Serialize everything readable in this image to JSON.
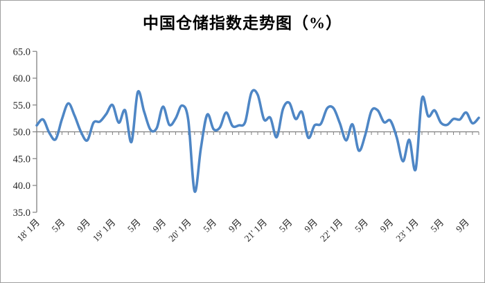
{
  "chart_data": {
    "type": "line",
    "title": "中国仓储指数走势图（%）",
    "ylabel": "",
    "xlabel": "",
    "ylim": [
      35,
      65
    ],
    "x_axis_cross_value": 50,
    "grid": false,
    "legend": false,
    "line_color": "#4e86c5",
    "axis_color": "#808080",
    "text_color": "#262626",
    "y_tick_values": [
      65,
      60,
      55,
      50,
      45,
      40,
      35
    ],
    "y_tick_labels": [
      "65.0",
      "60.0",
      "55.0",
      "50.0",
      "45.0",
      "40.0",
      "35.0"
    ],
    "x_tick_month_interval": 4,
    "x_tick_labels": [
      "18' 1月",
      "5月",
      "9月",
      "19' 1月",
      "5月",
      "9月",
      "20' 1月",
      "5月",
      "9月",
      "21' 1月",
      "5月",
      "9月",
      "22' 1月",
      "5月",
      "9月",
      "23' 1月",
      "5月",
      "9月"
    ],
    "months": [
      "2018-01",
      "2018-02",
      "2018-03",
      "2018-04",
      "2018-05",
      "2018-06",
      "2018-07",
      "2018-08",
      "2018-09",
      "2018-10",
      "2018-11",
      "2018-12",
      "2019-01",
      "2019-02",
      "2019-03",
      "2019-04",
      "2019-05",
      "2019-06",
      "2019-07",
      "2019-08",
      "2019-09",
      "2019-10",
      "2019-11",
      "2019-12",
      "2020-01",
      "2020-02",
      "2020-03",
      "2020-04",
      "2020-05",
      "2020-06",
      "2020-07",
      "2020-08",
      "2020-09",
      "2020-10",
      "2020-11",
      "2020-12",
      "2021-01",
      "2021-02",
      "2021-03",
      "2021-04",
      "2021-05",
      "2021-06",
      "2021-07",
      "2021-08",
      "2021-09",
      "2021-10",
      "2021-11",
      "2021-12",
      "2022-01",
      "2022-02",
      "2022-03",
      "2022-04",
      "2022-05",
      "2022-06",
      "2022-07",
      "2022-08",
      "2022-09",
      "2022-10",
      "2022-11",
      "2022-12",
      "2023-01",
      "2023-02",
      "2023-03",
      "2023-04",
      "2023-05",
      "2023-06",
      "2023-07",
      "2023-08",
      "2023-09",
      "2023-10",
      "2023-11"
    ],
    "values": [
      51.2,
      52.3,
      49.8,
      48.6,
      52.4,
      55.3,
      53.0,
      50.0,
      48.4,
      51.7,
      51.9,
      53.3,
      55.0,
      51.7,
      54.0,
      48.1,
      57.4,
      53.8,
      50.4,
      50.7,
      54.7,
      51.3,
      52.5,
      54.9,
      52.2,
      38.9,
      47.0,
      53.2,
      50.5,
      50.8,
      53.6,
      51.1,
      51.2,
      51.8,
      57.3,
      56.9,
      52.3,
      52.6,
      49.0,
      54.3,
      55.4,
      52.4,
      53.7,
      48.9,
      51.2,
      51.5,
      54.4,
      54.4,
      51.6,
      48.4,
      51.4,
      46.5,
      49.3,
      53.9,
      54.0,
      51.8,
      52.1,
      49.0,
      44.5,
      48.5,
      43.0,
      56.2,
      52.9,
      54.0,
      51.7,
      51.3,
      52.4,
      52.3,
      53.6,
      51.6,
      52.6
    ]
  }
}
